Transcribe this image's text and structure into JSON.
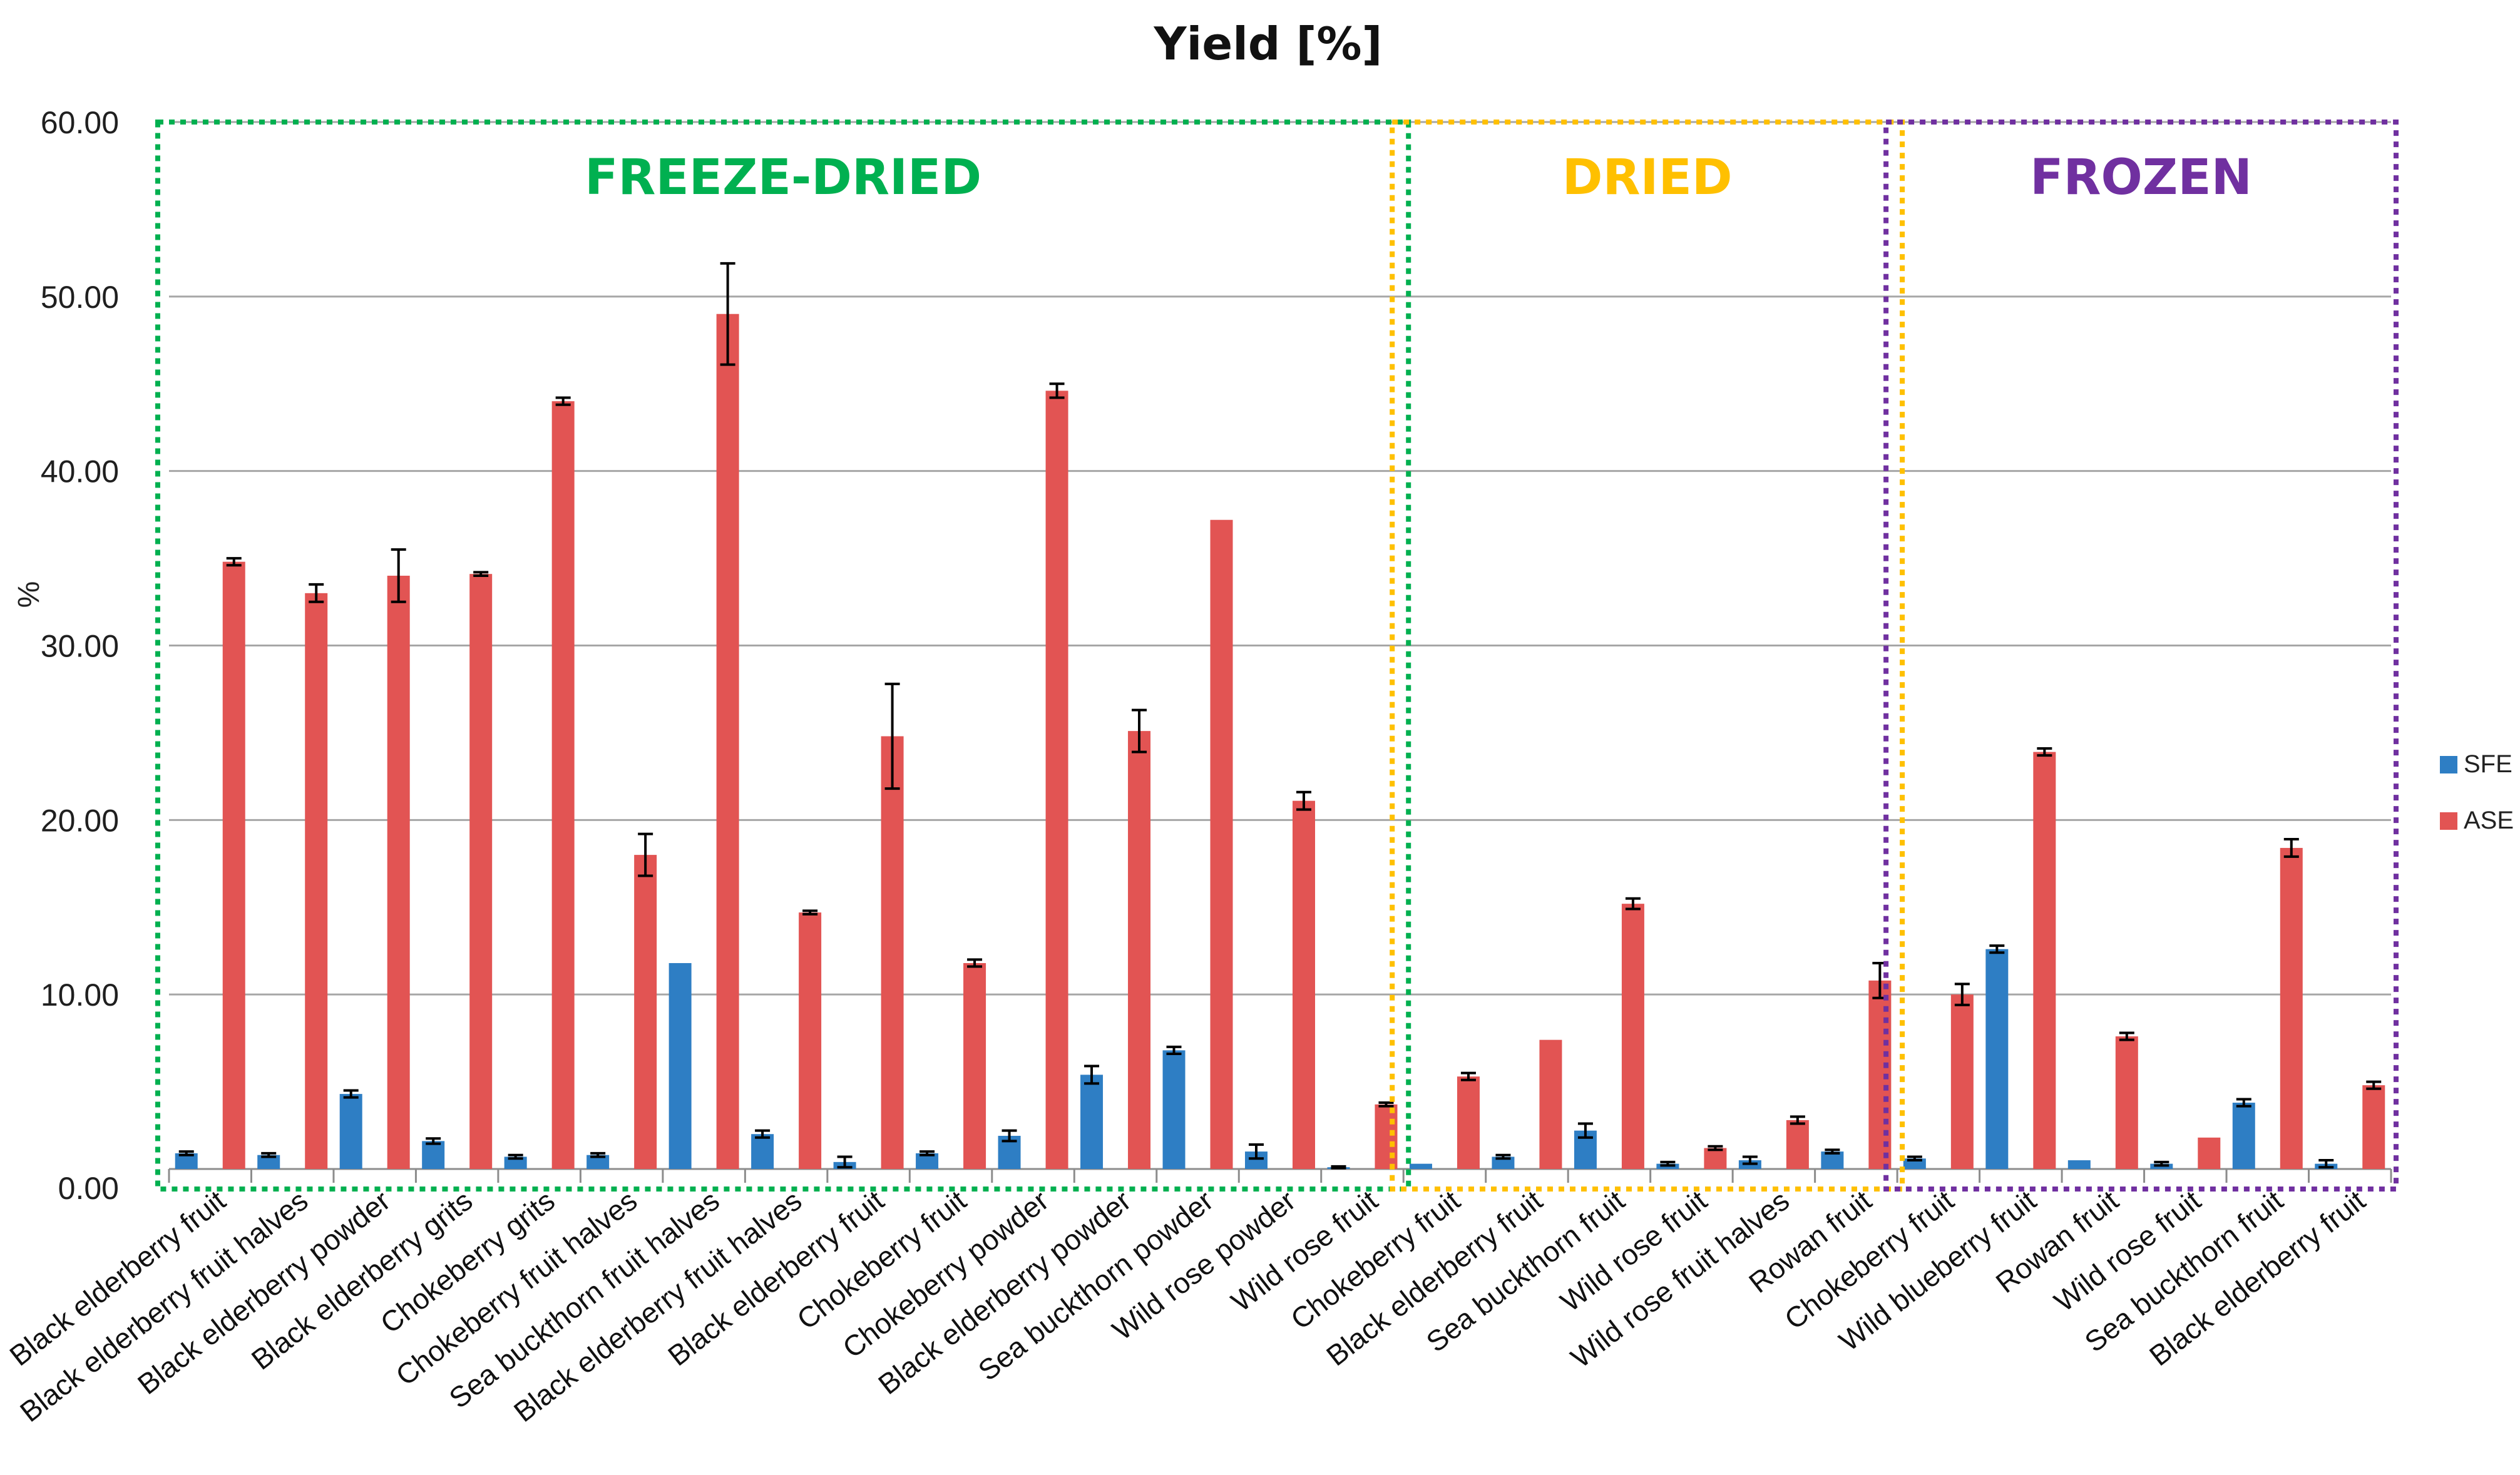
{
  "chart_data": {
    "type": "bar",
    "title": "Yield [%]",
    "xlabel": "",
    "ylabel": "%",
    "ylim": [
      0,
      60
    ],
    "yticks": [
      "0.00",
      "10.00",
      "20.00",
      "30.00",
      "40.00",
      "50.00",
      "60.00"
    ],
    "grid": true,
    "legend_position": "right",
    "categories": [
      "Black elderberry fruit",
      "Black elderberry fruit halves",
      "Black elderberry powder",
      "Black elderberry grits",
      "Chokeberry grits",
      "Chokeberry fruit halves",
      "Sea buckthorn fruit halves",
      "Black elderberry fruit halves",
      "Black elderberry fruit",
      "Chokeberry fruit",
      "Chokeberry powder",
      "Black elderberry powder",
      "Sea buckthorn powder",
      "Wild rose powder",
      "Wild rose fruit",
      "Chokeberry fruit",
      "Black elderberry fruit",
      "Sea buckthorn fruit",
      "Wild rose fruit",
      "Wild rose fruit halves",
      "Rowan fruit",
      "Chokeberry fruit",
      "Wild blueberry fruit",
      "Rowan fruit",
      "Wild rose fruit",
      "Sea buckthorn fruit",
      "Black elderberry fruit"
    ],
    "series": [
      {
        "name": "SFE",
        "color": "#2e7ec4",
        "values": [
          0.9,
          0.8,
          4.3,
          1.6,
          0.7,
          0.8,
          11.8,
          2.0,
          0.4,
          0.9,
          1.9,
          5.4,
          6.8,
          1.0,
          0.1,
          0.3,
          0.7,
          2.2,
          0.3,
          0.5,
          1.0,
          0.6,
          12.6,
          0.5,
          0.3,
          3.8,
          0.3
        ],
        "errors": [
          0.1,
          0.1,
          0.2,
          0.15,
          0.1,
          0.1,
          0,
          0.2,
          0.3,
          0.1,
          0.3,
          0.5,
          0.2,
          0.4,
          0.05,
          0,
          0.1,
          0.4,
          0.1,
          0.2,
          0.1,
          0.1,
          0.2,
          0,
          0.1,
          0.2,
          0.2
        ]
      },
      {
        "name": "ASE",
        "color": "#e25453",
        "values": [
          34.8,
          33.0,
          34.0,
          34.1,
          44.0,
          18.0,
          49.0,
          14.7,
          24.8,
          11.8,
          44.6,
          25.1,
          37.2,
          21.1,
          3.7,
          5.3,
          7.4,
          15.2,
          1.2,
          2.8,
          10.8,
          10.0,
          23.9,
          7.6,
          1.8,
          18.4,
          4.8
        ],
        "errors": [
          0.2,
          0.5,
          1.5,
          0.1,
          0.2,
          1.2,
          2.9,
          0.1,
          3.0,
          0.2,
          0.4,
          1.2,
          0,
          0.5,
          0.1,
          0.2,
          0,
          0.3,
          0.1,
          0.2,
          1.0,
          0.6,
          0.2,
          0.2,
          0,
          0.5,
          0.2
        ]
      }
    ],
    "groups": [
      {
        "label": "FREEZE-DRIED",
        "color": "#00b050",
        "start": 0,
        "end": 14
      },
      {
        "label": "DRIED",
        "color": "#ffc000",
        "start": 15,
        "end": 20
      },
      {
        "label": "FROZEN",
        "color": "#7030a0",
        "start": 21,
        "end": 26
      }
    ]
  }
}
